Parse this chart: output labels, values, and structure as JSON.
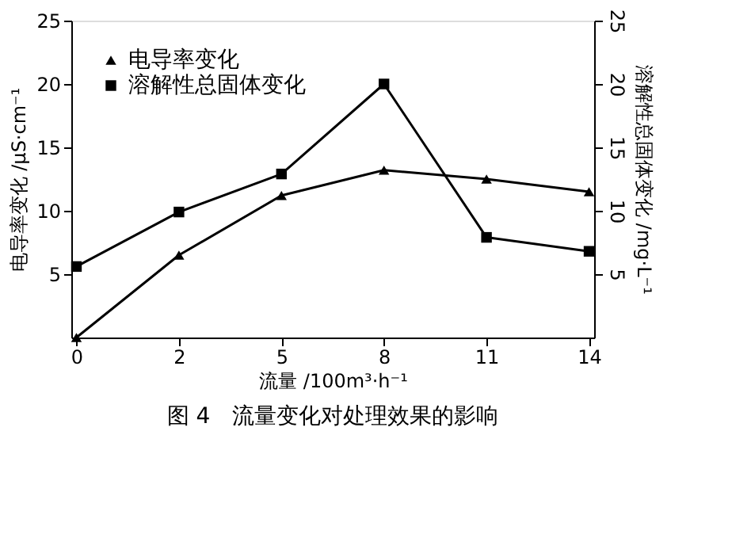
{
  "chart_data": {
    "type": "line",
    "title": "图 4　流量变化对处理效果的影响",
    "xlabel": "流量 /100m³·h⁻¹",
    "ylabel": "电导率变化 /μS·cm⁻¹",
    "y2label": "溶解性总固体变化 /mg·L⁻¹",
    "categories": [
      "0",
      "2",
      "5",
      "8",
      "11",
      "14"
    ],
    "series": [
      {
        "name": "电导率变化",
        "color": "#000000",
        "marker": "triangle",
        "values": [
          0,
          6.5,
          11.2,
          13.2,
          12.5,
          11.5
        ]
      },
      {
        "name": "溶解性总固体变化",
        "color": "#000000",
        "marker": "square",
        "axis": "y2",
        "values": [
          5.6,
          9.9,
          12.9,
          20,
          7.9,
          6.8
        ]
      }
    ],
    "ylim": [
      0,
      25
    ],
    "yticks": [
      5,
      10,
      15,
      20,
      25
    ],
    "y2lim": [
      0,
      25
    ],
    "y2ticks": [
      5,
      10,
      15,
      20,
      25
    ],
    "grid": false,
    "legend": "top left",
    "line_style": "solid"
  }
}
